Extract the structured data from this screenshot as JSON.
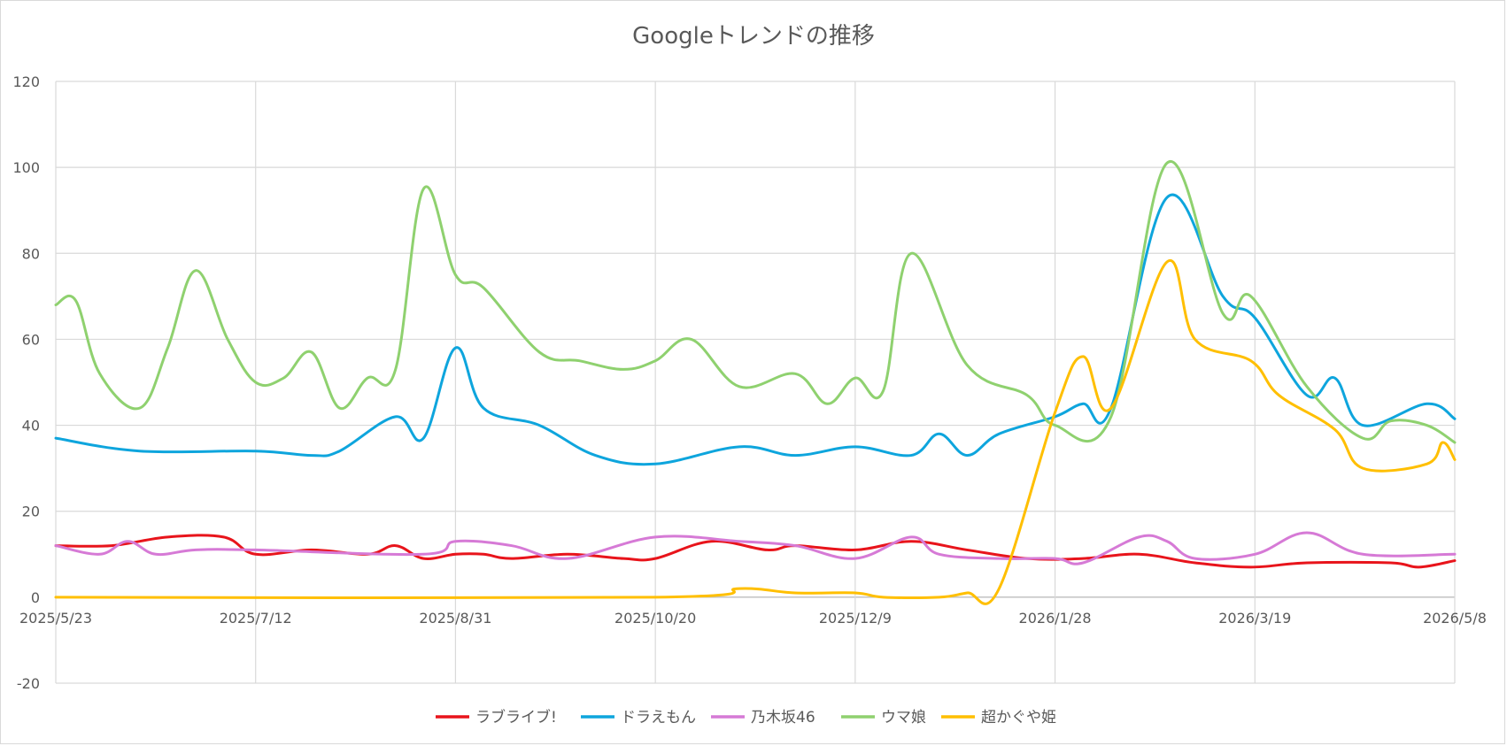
{
  "chart_data": {
    "type": "line",
    "title": "Googleトレンドの推移",
    "xlabel": "",
    "ylabel": "",
    "ylim": [
      -20,
      120
    ],
    "y_ticks": [
      -20,
      0,
      20,
      40,
      60,
      80,
      100,
      120
    ],
    "x_range": [
      "2025/5/23",
      "2026/5/8"
    ],
    "x_ticks": [
      "2025/5/23",
      "2025/7/12",
      "2025/8/31",
      "2025/10/20",
      "2025/12/9",
      "2026/1/28",
      "2026/3/19",
      "2026/5/8"
    ],
    "grid": true,
    "legend_position": "bottom",
    "series": [
      {
        "name": "ラブライブ!",
        "color": "#e8141b",
        "points": [
          [
            "2025/5/23",
            12
          ],
          [
            "2025/6/6",
            12
          ],
          [
            "2025/6/20",
            14
          ],
          [
            "2025/7/4",
            14
          ],
          [
            "2025/7/12",
            10
          ],
          [
            "2025/7/26",
            11
          ],
          [
            "2025/8/9",
            10
          ],
          [
            "2025/8/16",
            12
          ],
          [
            "2025/8/23",
            9
          ],
          [
            "2025/8/31",
            10
          ],
          [
            "2025/9/7",
            10
          ],
          [
            "2025/9/14",
            9
          ],
          [
            "2025/9/28",
            10
          ],
          [
            "2025/10/12",
            9
          ],
          [
            "2025/10/20",
            9
          ],
          [
            "2025/11/3",
            13
          ],
          [
            "2025/11/17",
            11
          ],
          [
            "2025/11/24",
            12
          ],
          [
            "2025/12/9",
            11
          ],
          [
            "2025/12/23",
            13
          ],
          [
            "2026/1/6",
            11
          ],
          [
            "2026/1/21",
            9
          ],
          [
            "2026/2/4",
            9
          ],
          [
            "2026/2/18",
            10
          ],
          [
            "2026/3/4",
            8
          ],
          [
            "2026/3/18",
            7
          ],
          [
            "2026/4/1",
            8
          ],
          [
            "2026/4/22",
            8
          ],
          [
            "2026/4/29",
            7
          ],
          [
            "2026/5/8",
            8.5
          ]
        ]
      },
      {
        "name": "ドラえもん",
        "color": "#0ea5dd",
        "points": [
          [
            "2025/5/23",
            37
          ],
          [
            "2025/6/13",
            34
          ],
          [
            "2025/7/12",
            34
          ],
          [
            "2025/7/26",
            33
          ],
          [
            "2025/8/2",
            34
          ],
          [
            "2025/8/16",
            42
          ],
          [
            "2025/8/23",
            37
          ],
          [
            "2025/8/31",
            58
          ],
          [
            "2025/9/7",
            44
          ],
          [
            "2025/9/21",
            40
          ],
          [
            "2025/10/5",
            33
          ],
          [
            "2025/10/20",
            31
          ],
          [
            "2025/11/10",
            35
          ],
          [
            "2025/11/24",
            33
          ],
          [
            "2025/12/9",
            35
          ],
          [
            "2025/12/23",
            33
          ],
          [
            "2025/12/30",
            38
          ],
          [
            "2026/1/6",
            33
          ],
          [
            "2026/1/14",
            38
          ],
          [
            "2026/1/28",
            42
          ],
          [
            "2026/2/4",
            45
          ],
          [
            "2026/2/11",
            44
          ],
          [
            "2026/2/25",
            93
          ],
          [
            "2026/3/11",
            70
          ],
          [
            "2026/3/19",
            65
          ],
          [
            "2026/4/1",
            47
          ],
          [
            "2026/4/8",
            51
          ],
          [
            "2026/4/15",
            40
          ],
          [
            "2026/5/1",
            45
          ],
          [
            "2026/5/8",
            41.5
          ]
        ]
      },
      {
        "name": "乃木坂46",
        "color": "#d67ad6",
        "points": [
          [
            "2025/5/23",
            12
          ],
          [
            "2025/6/3",
            10
          ],
          [
            "2025/6/10",
            13
          ],
          [
            "2025/6/17",
            10
          ],
          [
            "2025/6/27",
            11
          ],
          [
            "2025/7/12",
            11
          ],
          [
            "2025/8/23",
            10
          ],
          [
            "2025/8/31",
            13
          ],
          [
            "2025/9/14",
            12
          ],
          [
            "2025/9/28",
            9
          ],
          [
            "2025/10/20",
            14
          ],
          [
            "2025/11/10",
            13
          ],
          [
            "2025/11/24",
            12
          ],
          [
            "2025/12/9",
            9
          ],
          [
            "2025/12/23",
            14
          ],
          [
            "2025/12/30",
            10
          ],
          [
            "2026/1/14",
            9
          ],
          [
            "2026/1/28",
            9
          ],
          [
            "2026/2/4",
            8
          ],
          [
            "2026/2/18",
            14
          ],
          [
            "2026/2/25",
            13
          ],
          [
            "2026/3/4",
            9
          ],
          [
            "2026/3/19",
            10
          ],
          [
            "2026/4/1",
            15
          ],
          [
            "2026/4/15",
            10
          ],
          [
            "2026/5/8",
            10
          ]
        ]
      },
      {
        "name": "ウマ娘",
        "color": "#8fd16f",
        "points": [
          [
            "2025/5/23",
            68
          ],
          [
            "2025/5/28",
            69
          ],
          [
            "2025/6/3",
            52
          ],
          [
            "2025/6/13",
            44
          ],
          [
            "2025/6/20",
            58
          ],
          [
            "2025/6/27",
            76
          ],
          [
            "2025/7/5",
            60
          ],
          [
            "2025/7/12",
            50
          ],
          [
            "2025/7/19",
            51
          ],
          [
            "2025/7/26",
            57
          ],
          [
            "2025/8/2",
            44
          ],
          [
            "2025/8/9",
            51
          ],
          [
            "2025/8/16",
            53
          ],
          [
            "2025/8/23",
            95
          ],
          [
            "2025/8/31",
            75
          ],
          [
            "2025/9/7",
            72
          ],
          [
            "2025/9/21",
            57
          ],
          [
            "2025/10/1",
            55
          ],
          [
            "2025/10/12",
            53
          ],
          [
            "2025/10/20",
            55
          ],
          [
            "2025/10/29",
            60
          ],
          [
            "2025/11/10",
            49
          ],
          [
            "2025/11/24",
            52
          ],
          [
            "2025/12/2",
            45
          ],
          [
            "2025/12/9",
            51
          ],
          [
            "2025/12/16",
            48
          ],
          [
            "2025/12/23",
            80
          ],
          [
            "2026/1/6",
            54
          ],
          [
            "2026/1/21",
            47
          ],
          [
            "2026/1/28",
            40
          ],
          [
            "2026/2/11",
            42
          ],
          [
            "2026/2/25",
            101
          ],
          [
            "2026/3/11",
            66
          ],
          [
            "2026/3/18",
            70
          ],
          [
            "2026/4/1",
            49
          ],
          [
            "2026/4/15",
            37
          ],
          [
            "2026/4/22",
            41
          ],
          [
            "2026/5/1",
            40
          ],
          [
            "2026/5/8",
            36
          ]
        ]
      },
      {
        "name": "超かぐや姫",
        "color": "#ffbf00",
        "points": [
          [
            "2025/5/23",
            0
          ],
          [
            "2025/10/20",
            0
          ],
          [
            "2025/11/10",
            2
          ],
          [
            "2025/11/24",
            1
          ],
          [
            "2025/12/9",
            1
          ],
          [
            "2025/12/16",
            0
          ],
          [
            "2025/12/30",
            0
          ],
          [
            "2026/1/6",
            1
          ],
          [
            "2026/1/14",
            2
          ],
          [
            "2026/1/28",
            43
          ],
          [
            "2026/2/4",
            56
          ],
          [
            "2026/2/11",
            44
          ],
          [
            "2026/2/25",
            78
          ],
          [
            "2026/3/4",
            60
          ],
          [
            "2026/3/18",
            55
          ],
          [
            "2026/3/25",
            47
          ],
          [
            "2026/4/8",
            39
          ],
          [
            "2026/4/15",
            30
          ],
          [
            "2026/5/1",
            31
          ],
          [
            "2026/5/5",
            36
          ],
          [
            "2026/5/8",
            32
          ]
        ]
      }
    ]
  }
}
